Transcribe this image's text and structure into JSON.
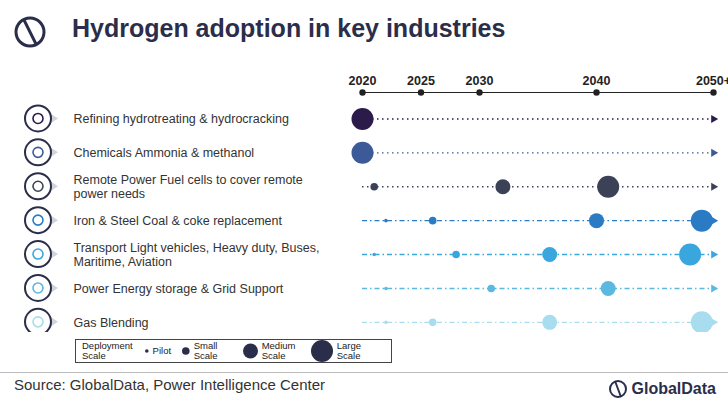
{
  "chart_data": {
    "type": "bubble",
    "title": "Hydrogen adoption in key industries",
    "source": "Source: GlobalData, Power Intelligence Center",
    "logo_text": "GlobalData",
    "xlim": [
      2020,
      2050
    ],
    "xticks": [
      2020,
      2025,
      2030,
      2040,
      {
        "value": 2050,
        "label": "2050+"
      }
    ],
    "legend": "bottom-left",
    "legend_title": "Deployment Scale",
    "scales": [
      "Pilot",
      "Small Scale",
      "Medium Scale",
      "Large Scale"
    ],
    "series": [
      {
        "name": "Refining hydrotreating & hydrocracking",
        "color": "#2a1b4a",
        "line_style": "dotted",
        "x": [
          2020
        ],
        "sizes": [
          "Large Scale"
        ]
      },
      {
        "name": "Chemicals Ammonia & methanol",
        "color": "#3d5a98",
        "line_style": "dotted",
        "x": [
          2020
        ],
        "sizes": [
          "Large Scale"
        ]
      },
      {
        "name": "Remote Power Fuel cells to cover remote power needs",
        "color": "#3b4257",
        "line_style": "dotted",
        "x": [
          2021,
          2032,
          2041
        ],
        "sizes": [
          "Small Scale",
          "Medium Scale",
          "Large Scale"
        ]
      },
      {
        "name": "Iron & Steel Coal & coke replacement",
        "color": "#2a7bc4",
        "line_style": "dashdot",
        "x": [
          2022,
          2026,
          2040,
          2049
        ],
        "sizes": [
          "Pilot",
          "Small Scale",
          "Medium Scale",
          "Large Scale"
        ]
      },
      {
        "name": "Transport Light vehicles, Heavy duty, Buses, Maritime, Aviation",
        "color": "#39a6dd",
        "line_style": "dashdot",
        "x": [
          2021,
          2028,
          2036,
          2048
        ],
        "sizes": [
          "Pilot",
          "Small Scale",
          "Medium Scale",
          "Large Scale"
        ]
      },
      {
        "name": "Power Energy storage & Grid Support",
        "color": "#5bb8e0",
        "line_style": "dashdot",
        "x": [
          2022,
          2031,
          2041
        ],
        "sizes": [
          "Pilot",
          "Small Scale",
          "Medium Scale"
        ]
      },
      {
        "name": "Gas Blending",
        "color": "#a8dcef",
        "line_style": "dashdot",
        "x": [
          2022,
          2026,
          2036,
          2049
        ],
        "sizes": [
          "Pilot",
          "Small Scale",
          "Medium Scale",
          "Large Scale"
        ]
      }
    ]
  }
}
